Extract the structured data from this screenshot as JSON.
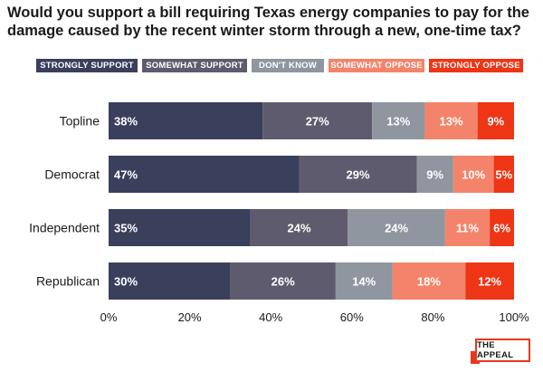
{
  "chart_data": {
    "type": "bar",
    "orientation": "horizontal",
    "stacked": true,
    "title": "Would you support a bill requiring Texas energy companies to pay for the damage caused by the recent winter storm through a new, one-time tax?",
    "categories": [
      "Topline",
      "Democrat",
      "Independent",
      "Republican"
    ],
    "series": [
      {
        "name": "STRONGLY SUPPORT",
        "color": "#3a3f5c",
        "values": [
          38,
          47,
          35,
          30
        ]
      },
      {
        "name": "SOMEWHAT SUPPORT",
        "color": "#5f5b6e",
        "values": [
          27,
          29,
          24,
          26
        ]
      },
      {
        "name": "DON'T KNOW",
        "color": "#8f969f",
        "values": [
          13,
          9,
          24,
          14
        ]
      },
      {
        "name": "SOMEWHAT OPPOSE",
        "color": "#f3846b",
        "values": [
          13,
          10,
          11,
          18
        ]
      },
      {
        "name": "STRONGLY OPPOSE",
        "color": "#ee3516",
        "values": [
          9,
          5,
          6,
          12
        ]
      }
    ],
    "xlim": [
      0,
      100
    ],
    "x_ticks": [
      "0%",
      "20%",
      "40%",
      "60%",
      "80%",
      "100%"
    ],
    "label_suffix": "%",
    "legend_position": "top",
    "grid": false
  },
  "logo": {
    "text": "THE APPEAL",
    "color": "#e8381c"
  }
}
